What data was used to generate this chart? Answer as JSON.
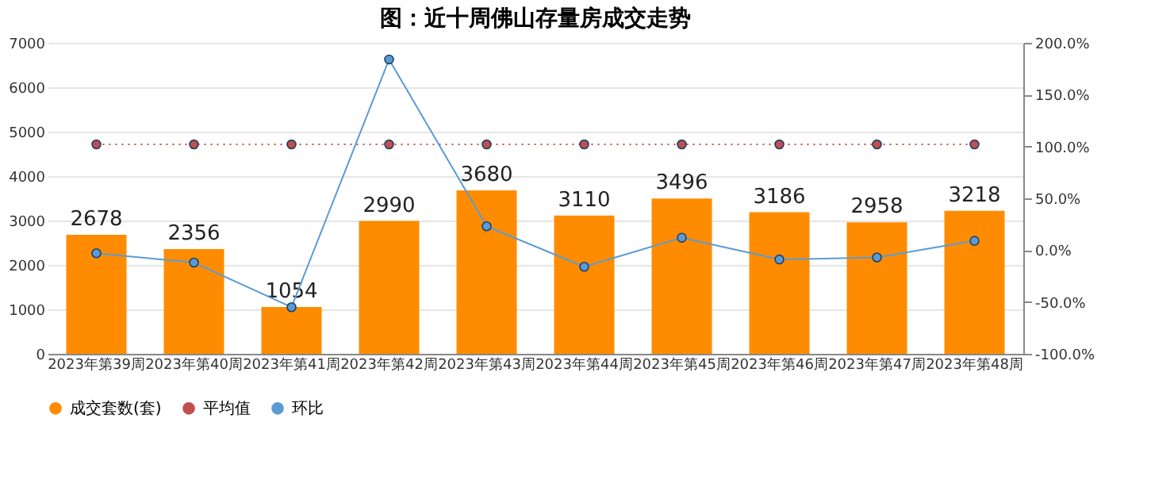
{
  "chart_data": {
    "type": "bar",
    "title": "图：近十周佛山存量房成交走势",
    "categories": [
      "2023年第39周",
      "2023年第40周",
      "2023年第41周",
      "2023年第42周",
      "2023年第43周",
      "2023年第44周",
      "2023年第45周",
      "2023年第46周",
      "2023年第47周",
      "2023年第48周"
    ],
    "series": [
      {
        "name": "成交套数(套)",
        "color": "#ff8c00",
        "values": [
          2678,
          2356,
          1054,
          2990,
          3680,
          3110,
          3496,
          3186,
          2958,
          3218
        ],
        "value_labels": [
          "2678",
          "2356",
          "1054",
          "2990",
          "3680",
          "3110",
          "3496",
          "3186",
          "2958",
          "3218"
        ]
      },
      {
        "name": "平均值",
        "type": "line",
        "axis": "y2",
        "color": "#c0504d",
        "line_style": "dotted",
        "values": [
          102,
          102,
          102,
          102,
          102,
          102,
          102,
          102,
          102,
          102
        ]
      },
      {
        "name": "环比",
        "type": "line",
        "axis": "y2",
        "color": "#5b9bd5",
        "line_style": "solid",
        "values": [
          -3,
          -12,
          -55,
          184,
          23,
          -16,
          12,
          -9,
          -7,
          9
        ]
      }
    ],
    "ylim": [
      0,
      7000
    ],
    "yticks": [
      0,
      1000,
      2000,
      3000,
      4000,
      5000,
      6000,
      7000
    ],
    "y2lim": [
      -100,
      200
    ],
    "y2ticks": [
      {
        "value": -100,
        "label": "-100.0%"
      },
      {
        "value": -50,
        "label": "-50.0%"
      },
      {
        "value": 0,
        "label": "0.0%"
      },
      {
        "value": 50,
        "label": "50.0%"
      },
      {
        "value": 100,
        "label": "100.0%"
      },
      {
        "value": 150,
        "label": "150.0%"
      },
      {
        "value": 200,
        "label": "200.0%"
      }
    ],
    "grid": "y",
    "legend": "bottom",
    "marker": "circle"
  }
}
